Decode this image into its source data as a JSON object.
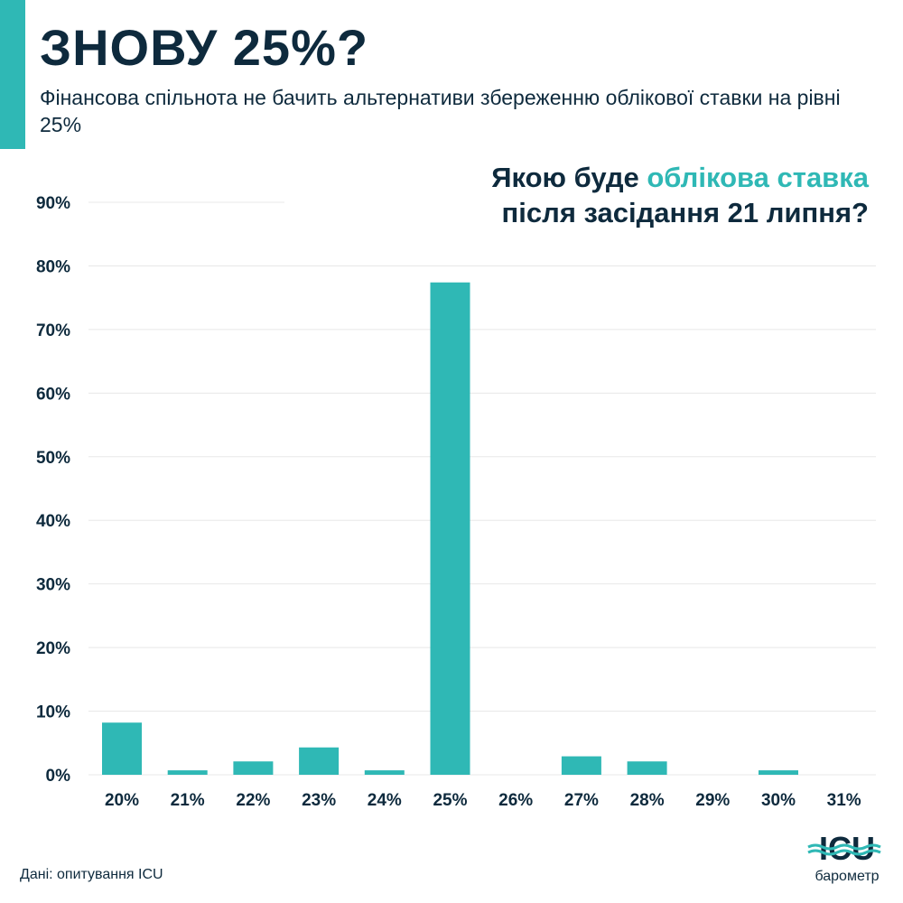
{
  "header": {
    "title": "ЗНОВУ 25%?",
    "subtitle": "Фінансова спільнота не бачить альтернативи збереженню облікової ставки на рівні 25%"
  },
  "question": {
    "part1": "Якою буде ",
    "highlight": "облікова ставка",
    "line2": "після засідання 21 липня?"
  },
  "footer": {
    "source": "Дані: опитування ICU"
  },
  "logo": {
    "brand": "ICU",
    "word": "барометр"
  },
  "colors": {
    "accent": "#2fb8b5",
    "text": "#0e2a3d",
    "grid": "#e8e8e8"
  },
  "chart_data": {
    "type": "bar",
    "categories": [
      "20%",
      "21%",
      "22%",
      "23%",
      "24%",
      "25%",
      "26%",
      "27%",
      "28%",
      "29%",
      "30%",
      "31%"
    ],
    "values": [
      8.2,
      0.7,
      2.1,
      4.3,
      0.7,
      77.4,
      0,
      2.9,
      2.1,
      0,
      0.7,
      0
    ],
    "yticks": [
      "0%",
      "10%",
      "20%",
      "30%",
      "40%",
      "50%",
      "60%",
      "70%",
      "80%",
      "90%"
    ],
    "ylim": [
      0,
      90
    ],
    "grid": true
  }
}
